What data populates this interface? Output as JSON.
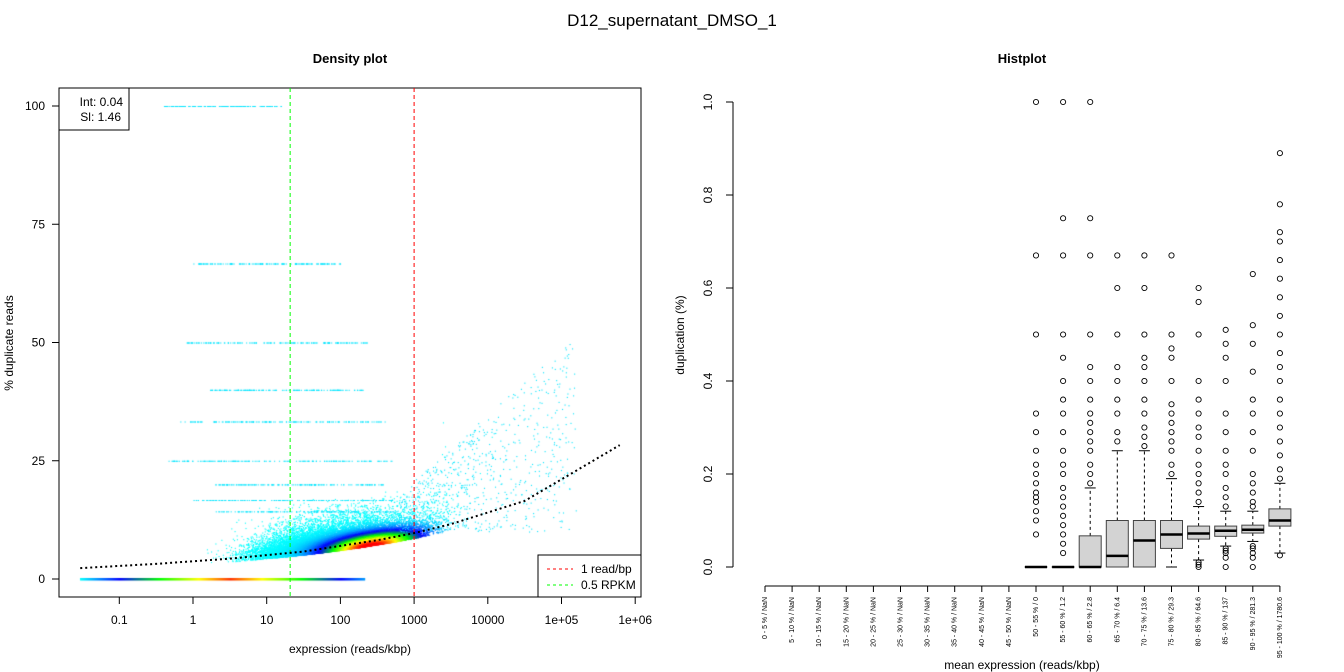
{
  "main_title": "D12_supernatant_DMSO_1",
  "chart_data": [
    {
      "type": "scatter",
      "title": "Density plot",
      "xlabel": "expression (reads/kbp)",
      "ylabel": "% duplicate reads",
      "xscale": "log",
      "xlim_log10": [
        -1.8,
        6.1
      ],
      "ylim": [
        -3.5,
        104
      ],
      "xticks": [
        {
          "value": 0.1,
          "label": "0.1"
        },
        {
          "value": 1,
          "label": "1"
        },
        {
          "value": 10,
          "label": "10"
        },
        {
          "value": 100,
          "label": "100"
        },
        {
          "value": 1000,
          "label": "1000"
        },
        {
          "value": 10000,
          "label": "10000"
        },
        {
          "value": 100000,
          "label": "1e+05"
        },
        {
          "value": 1000000,
          "label": "1e+06"
        }
      ],
      "yticks": [
        {
          "value": 0,
          "label": "0"
        },
        {
          "value": 25,
          "label": "25"
        },
        {
          "value": 50,
          "label": "50"
        },
        {
          "value": 75,
          "label": "75"
        },
        {
          "value": 100,
          "label": "100"
        }
      ],
      "fit": {
        "int_label": "Int: 0.04",
        "sl_label": "Sl: 1.46",
        "curve_log10x": [
          -1.53,
          -0.5,
          0.5,
          1.5,
          2.5,
          3.0,
          3.5,
          4.5,
          5.79
        ],
        "curve_y": [
          2.3,
          3.2,
          4.3,
          5.8,
          8.2,
          9.7,
          11.6,
          16.5,
          28.3
        ]
      },
      "vlines": [
        {
          "x": 1000,
          "color": "#ff0000",
          "label": "1 read/bp"
        },
        {
          "x": 20.8,
          "color": "#00ff00",
          "label": "0.5 RPKM"
        }
      ],
      "legend_position": "bottom-right",
      "fit_legend_position": "top-left"
    },
    {
      "type": "box",
      "title": "Histplot",
      "xlabel": "mean expression (reads/kbp)",
      "ylabel": "duplication (%)",
      "ylim": [
        0,
        1
      ],
      "yticks": [
        {
          "value": 0.0,
          "label": "0.0"
        },
        {
          "value": 0.2,
          "label": "0.2"
        },
        {
          "value": 0.4,
          "label": "0.4"
        },
        {
          "value": 0.6,
          "label": "0.6"
        },
        {
          "value": 0.8,
          "label": "0.8"
        },
        {
          "value": 1.0,
          "label": "1.0"
        }
      ],
      "categories": [
        "0 - 5 % / NaN",
        "5 - 10 % / NaN",
        "10 - 15 % / NaN",
        "15 - 20 % / NaN",
        "20 - 25 % / NaN",
        "25 - 30 % / NaN",
        "30 - 35 % / NaN",
        "35 - 40 % / NaN",
        "40 - 45 % / NaN",
        "45 - 50 % / NaN",
        "50 - 55 % / 0",
        "55 - 60 % / 1.2",
        "60 - 65 % / 2.8",
        "65 - 70 % / 6.4",
        "70 - 75 % / 13.6",
        "75 - 80 % / 29.3",
        "80 - 85 % / 64.6",
        "85 - 90 % / 137",
        "90 - 95 % / 281.3",
        "95 - 100 % / 1780.6"
      ],
      "boxes": [
        null,
        null,
        null,
        null,
        null,
        null,
        null,
        null,
        null,
        null,
        {
          "lo": 0,
          "q1": 0,
          "med": 0,
          "q3": 0,
          "hi": 0,
          "out": [
            0.07,
            0.1,
            0.12,
            0.14,
            0.15,
            0.16,
            0.18,
            0.2,
            0.22,
            0.25,
            0.29,
            0.33,
            0.5,
            0.67,
            1.0
          ]
        },
        {
          "lo": 0,
          "q1": 0,
          "med": 0,
          "q3": 0,
          "hi": 0,
          "out": [
            0.03,
            0.05,
            0.07,
            0.09,
            0.11,
            0.13,
            0.15,
            0.17,
            0.2,
            0.22,
            0.25,
            0.29,
            0.33,
            0.36,
            0.4,
            0.45,
            0.5,
            0.67,
            0.75,
            1.0
          ]
        },
        {
          "lo": 0,
          "q1": 0,
          "med": 0,
          "q3": 0.067,
          "hi": 0.17,
          "out": [
            0.18,
            0.2,
            0.22,
            0.25,
            0.27,
            0.29,
            0.31,
            0.33,
            0.36,
            0.4,
            0.43,
            0.5,
            0.67,
            0.75,
            1.0
          ]
        },
        {
          "lo": 0,
          "q1": 0,
          "med": 0.024,
          "q3": 0.1,
          "hi": 0.25,
          "out": [
            0.27,
            0.29,
            0.33,
            0.36,
            0.4,
            0.43,
            0.5,
            0.6,
            0.67
          ]
        },
        {
          "lo": 0,
          "q1": 0,
          "med": 0.057,
          "q3": 0.1,
          "hi": 0.25,
          "out": [
            0.26,
            0.28,
            0.3,
            0.33,
            0.36,
            0.4,
            0.43,
            0.45,
            0.5,
            0.6,
            0.67
          ]
        },
        {
          "lo": 0,
          "q1": 0.04,
          "med": 0.07,
          "q3": 0.1,
          "hi": 0.19,
          "out": [
            0.2,
            0.22,
            0.25,
            0.27,
            0.29,
            0.31,
            0.33,
            0.35,
            0.4,
            0.45,
            0.47,
            0.5,
            0.67
          ]
        },
        {
          "lo": 0.015,
          "q1": 0.06,
          "med": 0.072,
          "q3": 0.088,
          "hi": 0.13,
          "out": [
            0,
            0.005,
            0.01,
            0.14,
            0.16,
            0.18,
            0.2,
            0.22,
            0.25,
            0.28,
            0.3,
            0.33,
            0.36,
            0.4,
            0.5,
            0.57,
            0.6
          ]
        },
        {
          "lo": 0.045,
          "q1": 0.066,
          "med": 0.078,
          "q3": 0.088,
          "hi": 0.12,
          "out": [
            0,
            0.02,
            0.03,
            0.035,
            0.04,
            0.13,
            0.15,
            0.17,
            0.2,
            0.22,
            0.25,
            0.29,
            0.33,
            0.4,
            0.45,
            0.48,
            0.51
          ]
        },
        {
          "lo": 0.055,
          "q1": 0.073,
          "med": 0.08,
          "q3": 0.09,
          "hi": 0.12,
          "out": [
            0,
            0.02,
            0.03,
            0.04,
            0.045,
            0.13,
            0.14,
            0.16,
            0.18,
            0.2,
            0.25,
            0.29,
            0.33,
            0.36,
            0.42,
            0.48,
            0.52,
            0.63
          ]
        },
        {
          "lo": 0.03,
          "q1": 0.088,
          "med": 0.1,
          "q3": 0.125,
          "hi": 0.18,
          "out": [
            0.025,
            0.19,
            0.21,
            0.24,
            0.27,
            0.3,
            0.33,
            0.36,
            0.4,
            0.43,
            0.46,
            0.5,
            0.54,
            0.58,
            0.62,
            0.66,
            0.7,
            0.72,
            0.78,
            0.89
          ]
        }
      ]
    }
  ]
}
